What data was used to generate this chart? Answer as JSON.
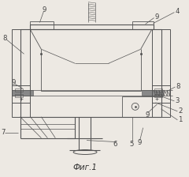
{
  "fig_label": "Фиг.1",
  "background_color": "#ede9e3",
  "line_color": "#555555",
  "label_color": "#444444",
  "lw_main": 0.8,
  "lw_thin": 0.5
}
